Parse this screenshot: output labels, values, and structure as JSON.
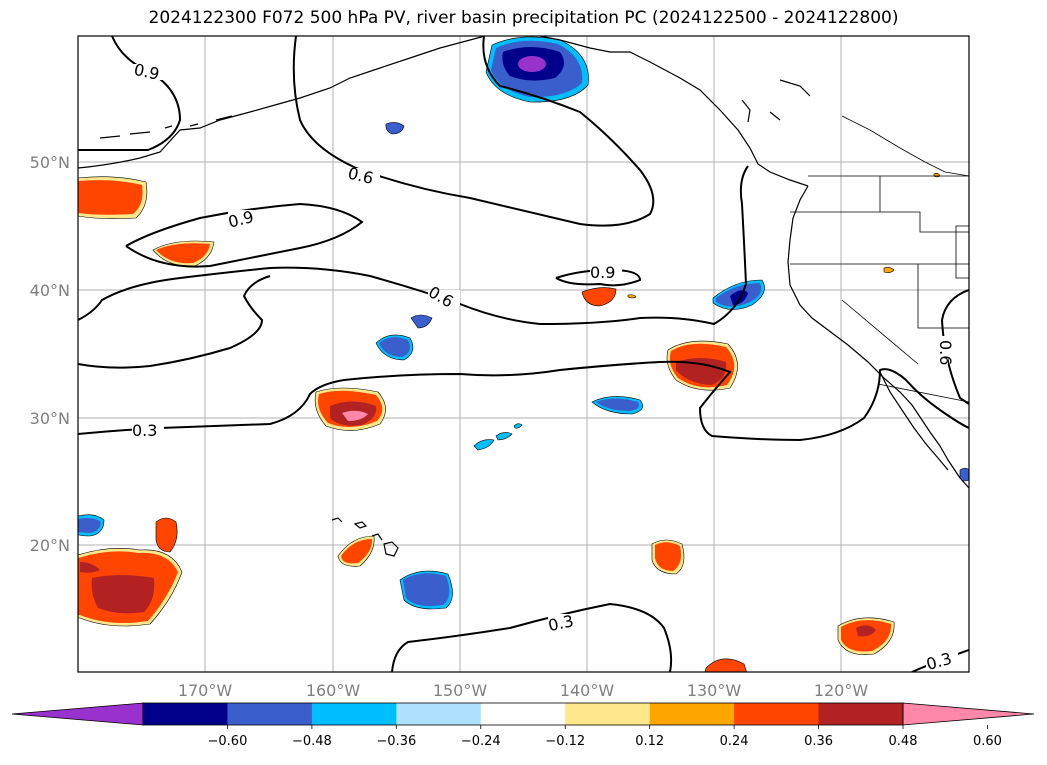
{
  "title": "2024122300 F072 500 hPa PV, river basin precipitation PC (2024122500 - 2024122800)",
  "map": {
    "lat_labels": [
      "50°N",
      "40°N",
      "30°N",
      "20°N"
    ],
    "lon_labels": [
      "170°W",
      "160°W",
      "150°W",
      "140°W",
      "130°W",
      "120°W"
    ],
    "contour_labels": [
      "0.9",
      "0.6",
      "0.9",
      "0.6",
      "0.9",
      "0.3",
      "0.6",
      "0.3",
      "0.3"
    ]
  },
  "colorbar": {
    "tick_labels": [
      "−0.60",
      "−0.48",
      "−0.36",
      "−0.24",
      "−0.12",
      "0.12",
      "0.24",
      "0.36",
      "0.48",
      "0.60"
    ],
    "colors": [
      "#9932cc",
      "#00008b",
      "#3a5fcd",
      "#00bfff",
      "#b0e2ff",
      "#ffffff",
      "#ffe88c",
      "#ffa500",
      "#ff4500",
      "#b22222",
      "#ff88aa"
    ]
  }
}
